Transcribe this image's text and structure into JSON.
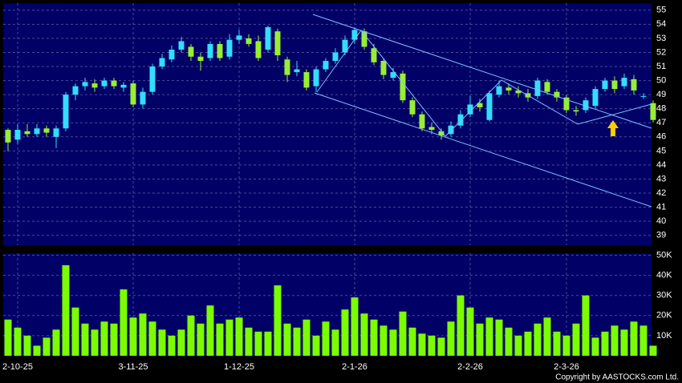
{
  "copyright": "Copyright by AASTOCKS.com Ltd.",
  "chart_data": [
    {
      "type": "candlestick",
      "up_color": "#33ddff",
      "down_color": "#99ee33",
      "grid": true,
      "ylim": [
        38.3,
        55.5
      ],
      "yticks": [
        39,
        40,
        41,
        42,
        43,
        44,
        45,
        46,
        47,
        48,
        49,
        50,
        51,
        52,
        53,
        54,
        55
      ],
      "series": {
        "open": [
          46.5,
          45.8,
          46.4,
          46.2,
          46.6,
          46.0,
          46.6,
          49.0,
          49.6,
          49.8,
          49.6,
          50.0,
          49.5,
          49.8,
          48.3,
          49.2,
          51.0,
          51.5,
          52.2,
          52.4,
          51.7,
          51.6,
          52.6,
          51.7,
          52.9,
          53.0,
          52.8,
          52.2,
          53.5,
          51.5,
          50.6,
          50.6,
          49.6,
          50.8,
          51.4,
          52.0,
          52.9,
          53.5,
          52.3,
          51.4,
          50.2,
          50.5,
          48.6,
          47.6,
          46.7,
          46.4,
          46.2,
          46.8,
          47.6,
          48.4,
          47.2,
          49.0,
          49.5,
          49.3,
          49.1,
          48.9,
          49.9,
          49.2,
          48.8,
          47.9,
          47.9,
          48.2,
          49.4,
          50.0,
          49.6,
          50.1,
          48.9,
          48.4
        ],
        "high": [
          46.6,
          46.9,
          46.9,
          46.9,
          46.8,
          46.8,
          49.2,
          49.8,
          50.2,
          50.1,
          50.2,
          50.2,
          49.9,
          50.0,
          49.5,
          51.2,
          51.9,
          52.5,
          53.1,
          52.6,
          52.0,
          52.8,
          52.8,
          53.3,
          53.6,
          53.3,
          53.2,
          53.9,
          53.7,
          51.7,
          51.4,
          50.8,
          51.0,
          51.6,
          52.3,
          53.2,
          53.8,
          53.7,
          52.6,
          51.6,
          50.9,
          50.7,
          48.8,
          47.8,
          47.0,
          46.6,
          47.1,
          47.9,
          48.9,
          48.7,
          49.3,
          50.0,
          49.8,
          49.6,
          49.4,
          50.2,
          50.1,
          49.4,
          49.0,
          48.2,
          48.8,
          49.6,
          50.2,
          50.3,
          50.5,
          50.4,
          49.1,
          48.6
        ],
        "low": [
          45.0,
          45.5,
          46.0,
          46.0,
          46.0,
          45.2,
          46.4,
          48.6,
          49.3,
          49.2,
          49.4,
          49.4,
          49.2,
          48.1,
          48.0,
          49.0,
          50.8,
          51.3,
          52.0,
          51.4,
          50.7,
          51.4,
          51.4,
          51.5,
          52.6,
          52.4,
          51.4,
          52.0,
          51.4,
          49.9,
          50.3,
          49.3,
          49.2,
          50.6,
          51.2,
          51.8,
          52.6,
          52.2,
          51.1,
          50.1,
          50.0,
          48.4,
          47.4,
          46.4,
          46.2,
          45.8,
          46.0,
          46.6,
          47.4,
          47.8,
          47.1,
          48.8,
          49.0,
          48.8,
          48.5,
          48.7,
          49.0,
          48.5,
          47.7,
          47.5,
          47.7,
          48.0,
          49.2,
          49.1,
          49.4,
          49.0,
          48.7,
          47.0
        ],
        "close": [
          45.6,
          46.5,
          46.2,
          46.6,
          46.3,
          46.6,
          49.0,
          49.6,
          49.9,
          49.5,
          50.0,
          49.6,
          49.7,
          48.3,
          49.2,
          51.0,
          51.6,
          52.2,
          52.8,
          51.7,
          51.4,
          52.6,
          51.6,
          52.9,
          53.2,
          52.6,
          51.6,
          53.8,
          51.8,
          50.4,
          50.8,
          49.5,
          50.8,
          51.4,
          52.0,
          52.9,
          53.6,
          52.4,
          51.3,
          50.4,
          50.6,
          48.6,
          47.6,
          46.6,
          46.5,
          46.1,
          46.8,
          47.6,
          48.3,
          48.1,
          49.1,
          49.6,
          49.3,
          49.1,
          48.8,
          50.0,
          49.2,
          48.8,
          47.9,
          47.8,
          48.6,
          49.4,
          50.0,
          49.4,
          50.2,
          49.3,
          48.9,
          47.2
        ]
      }
    },
    {
      "type": "bar",
      "color": "#7cfc00",
      "grid": true,
      "ylim": [
        0,
        51000
      ],
      "yticks": [
        {
          "value": 10000,
          "label": "10K"
        },
        {
          "value": 20000,
          "label": "20K"
        },
        {
          "value": 30000,
          "label": "30K"
        },
        {
          "value": 40000,
          "label": "40K"
        },
        {
          "value": 50000,
          "label": "50K"
        }
      ],
      "categories": [
        null,
        "2-10-25",
        null,
        null,
        null,
        null,
        null,
        null,
        null,
        null,
        null,
        null,
        null,
        "3-11-25",
        null,
        null,
        null,
        null,
        null,
        null,
        null,
        null,
        null,
        null,
        "1-12-25",
        null,
        null,
        null,
        null,
        null,
        null,
        null,
        null,
        null,
        null,
        null,
        "2-1-26",
        null,
        null,
        null,
        null,
        null,
        null,
        null,
        null,
        null,
        null,
        null,
        "2-2-26",
        null,
        null,
        null,
        null,
        null,
        null,
        null,
        null,
        null,
        "2-3-26",
        null,
        null,
        null,
        null,
        null,
        null,
        null,
        null,
        null
      ],
      "values": [
        18000,
        14000,
        10000,
        5000,
        9000,
        13000,
        45000,
        24000,
        16000,
        13000,
        17000,
        16000,
        33000,
        19000,
        21000,
        17000,
        13000,
        10000,
        13000,
        20000,
        16000,
        25000,
        16000,
        18000,
        19000,
        14000,
        12000,
        12000,
        35000,
        16000,
        14000,
        18000,
        10000,
        17000,
        13000,
        23000,
        29000,
        21000,
        18000,
        15000,
        13000,
        22000,
        14000,
        11000,
        10000,
        9000,
        17000,
        30000,
        24000,
        16000,
        19000,
        18000,
        14000,
        10000,
        12000,
        16000,
        19000,
        12000,
        10000,
        16000,
        30000,
        9000,
        12000,
        15000,
        13000,
        17000,
        15000,
        5000
      ]
    }
  ]
}
